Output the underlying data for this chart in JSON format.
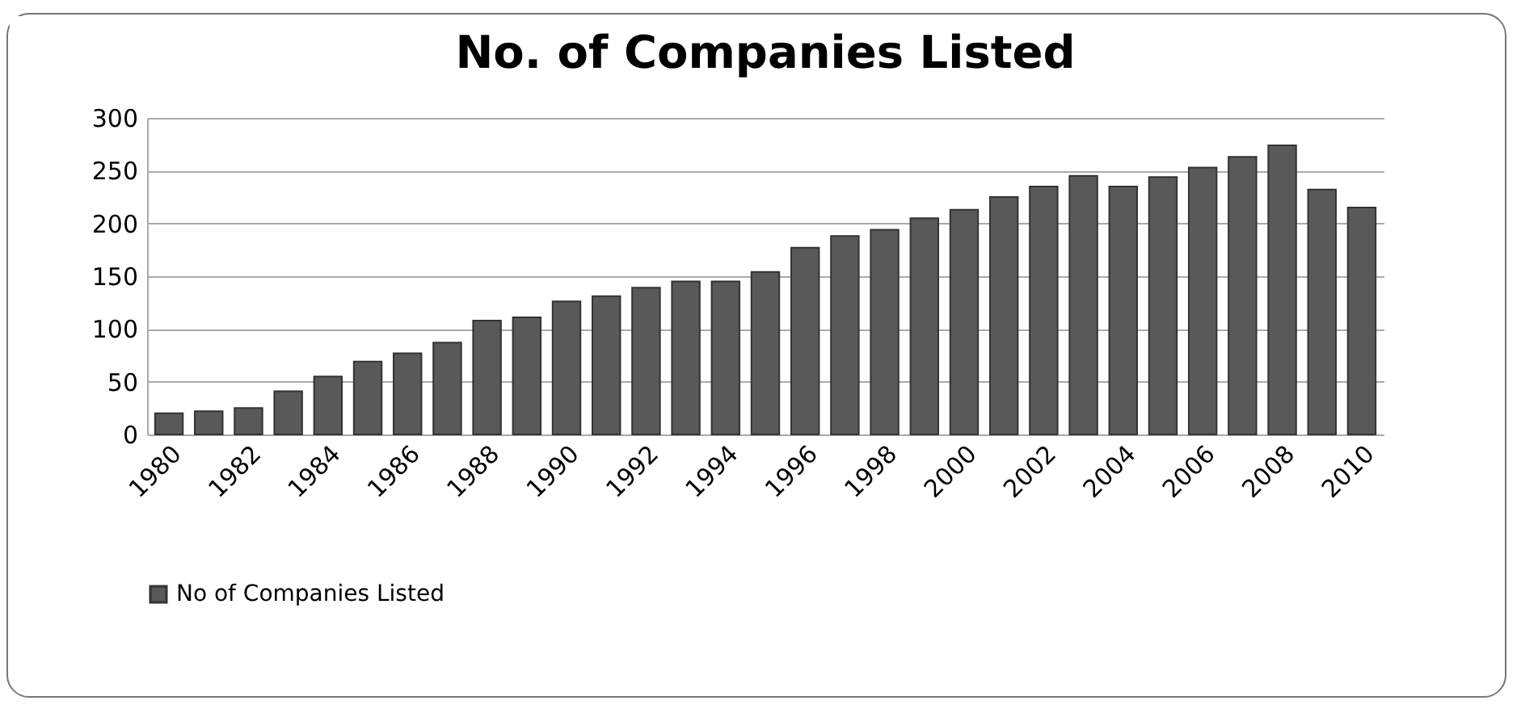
{
  "chart_data": {
    "type": "bar",
    "title": "No. of Companies Listed",
    "categories": [
      "1980",
      null,
      "1982",
      null,
      "1984",
      null,
      "1986",
      null,
      "1988",
      null,
      "1990",
      null,
      "1992",
      null,
      "1994",
      null,
      "1996",
      null,
      "1998",
      null,
      "2000",
      null,
      "2002",
      null,
      "2004",
      null,
      "2006",
      null,
      "2008",
      null,
      "2010"
    ],
    "series": [
      {
        "name": "No of Companies Listed",
        "color": "#595959",
        "values": [
          20,
          22,
          25,
          41,
          55,
          69,
          77,
          87,
          108,
          111,
          126,
          131,
          139,
          145,
          145,
          154,
          177,
          188,
          194,
          205,
          213,
          225,
          235,
          245,
          235,
          244,
          253,
          263,
          274,
          232,
          215
        ]
      }
    ],
    "ylim": [
      0,
      300
    ],
    "yticks": [
      0,
      50,
      100,
      150,
      200,
      250,
      300
    ],
    "grid": "y",
    "legend": "bottom"
  }
}
